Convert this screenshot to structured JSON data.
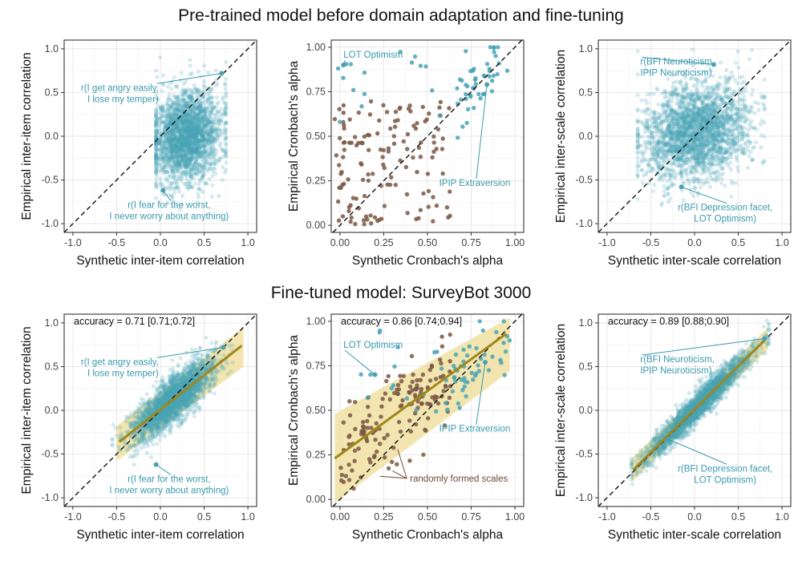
{
  "colors": {
    "teal": "#4aa3b5",
    "brown": "#7a5744",
    "band": "#eddc94",
    "fit": "#a0871a",
    "grid": "#e6e6e6",
    "frame": "#222222",
    "annotation_teal": "#3a9aae"
  },
  "rows": [
    {
      "title": "Pre-trained model before domain adaptation and fine-tuning"
    },
    {
      "title": "Fine-tuned model: SurveyBot 3000"
    }
  ],
  "chart_data": [
    {
      "id": "pre-item",
      "row": 0,
      "col": 0,
      "type": "scatter",
      "xlabel": "Synthetic inter-item correlation",
      "ylabel": "Empirical inter-item correlation",
      "xlim": [
        -1.1,
        1.1
      ],
      "ylim": [
        -1.1,
        1.1
      ],
      "xticks": [
        -1.0,
        -0.5,
        0.0,
        0.5,
        1.0
      ],
      "xtick_labels": [
        "-1.0",
        "-0.5",
        "0.0",
        "0.5",
        "1.0"
      ],
      "yticks": [
        -1.0,
        -0.5,
        0.0,
        0.5,
        1.0
      ],
      "ytick_labels": [
        "-1.0",
        "-0.5",
        "0.0",
        "0.5",
        "1.0"
      ],
      "identity_line": true,
      "cloud": {
        "n": 2600,
        "seed": 11,
        "mx": 0.3,
        "my": 0.0,
        "sx": 0.19,
        "sy": 0.26,
        "rho": 0.15,
        "x_range": [
          -0.05,
          0.75
        ]
      },
      "highlights": [
        {
          "x": 0.7,
          "y": 0.72
        },
        {
          "x": 0.03,
          "y": -0.62
        }
      ],
      "annotations": [
        {
          "lines": [
            "r(I get angry easily,",
            "I lose my temper)"
          ],
          "x": -0.02,
          "y": 0.52,
          "anchor": "end",
          "to": [
            0.7,
            0.72
          ]
        },
        {
          "lines": [
            "r(I fear for the worst,",
            "I never worry about anything)"
          ],
          "x": 0.1,
          "y": -0.82,
          "anchor": "middle",
          "to": [
            0.03,
            -0.62
          ]
        }
      ]
    },
    {
      "id": "pre-alpha",
      "row": 0,
      "col": 1,
      "type": "scatter",
      "xlabel": "Synthetic Cronbach's alpha",
      "ylabel": "Empirical Cronbach's alpha",
      "xlim": [
        -0.05,
        1.05
      ],
      "ylim": [
        -0.04,
        1.04
      ],
      "xticks": [
        0,
        0.25,
        0.5,
        0.75,
        1.0
      ],
      "xtick_labels": [
        "0.00",
        "0.25",
        "0.50",
        "0.75",
        "1.00"
      ],
      "yticks": [
        0,
        0.25,
        0.5,
        0.75,
        1.0
      ],
      "ytick_labels": [
        "0.00",
        "0.25",
        "0.50",
        "0.75",
        "1.00"
      ],
      "identity_line": true,
      "points_teal": [
        {
          "n": 48,
          "seed": 21,
          "x_range": [
            0.65,
            0.97
          ],
          "y_around_x": 0.0,
          "y_jitter": 0.09
        },
        {
          "n": 16,
          "seed": 22,
          "x_range": [
            -0.03,
            0.6
          ],
          "y_range": [
            0.55,
            0.98
          ]
        }
      ],
      "points_brown": {
        "n": 140,
        "seed": 23,
        "x_range": [
          -0.03,
          0.63
        ],
        "y_range": [
          0.0,
          0.7
        ]
      },
      "highlights": [
        {
          "x": 0.02,
          "y": 0.9
        },
        {
          "x": 0.84,
          "y": 0.79
        }
      ],
      "annotations": [
        {
          "lines": [
            "LOT Optimism"
          ],
          "x": 0.02,
          "y": 0.94,
          "anchor": "start",
          "to": [
            0.02,
            0.9
          ]
        },
        {
          "lines": [
            "IPIP Extraversion"
          ],
          "x": 0.77,
          "y": 0.22,
          "anchor": "middle",
          "to": [
            0.84,
            0.79
          ]
        }
      ]
    },
    {
      "id": "pre-scale",
      "row": 0,
      "col": 2,
      "type": "scatter",
      "xlabel": "Synthetic inter-scale correlation",
      "ylabel": "Empirical inter-scale correlation",
      "xlim": [
        -1.1,
        1.1
      ],
      "ylim": [
        -1.1,
        1.1
      ],
      "xticks": [
        -1.0,
        -0.5,
        0.0,
        0.5,
        1.0
      ],
      "xtick_labels": [
        "-1.0",
        "-0.5",
        "0.0",
        "0.5",
        "1.0"
      ],
      "yticks": [
        -1.0,
        -0.5,
        0.0,
        0.5,
        1.0
      ],
      "ytick_labels": [
        "-1.0",
        "-0.5",
        "0.0",
        "0.5",
        "1.0"
      ],
      "identity_line": true,
      "cloud": {
        "n": 2600,
        "seed": 31,
        "mx": 0.02,
        "my": 0.05,
        "sx": 0.3,
        "sy": 0.27,
        "rho": 0.2,
        "x_range": [
          -0.65,
          0.8
        ]
      },
      "highlights": [
        {
          "x": 0.22,
          "y": 0.82
        },
        {
          "x": -0.15,
          "y": -0.58
        }
      ],
      "annotations": [
        {
          "lines": [
            "r(BFI Neuroticism,",
            "IPIP Neuroticism)"
          ],
          "x": -0.62,
          "y": 0.82,
          "anchor": "start",
          "to": [
            0.22,
            0.82
          ]
        },
        {
          "lines": [
            "r(BFI Depression facet,",
            "LOT Optimism)"
          ],
          "x": 0.35,
          "y": -0.85,
          "anchor": "middle",
          "to": [
            -0.15,
            -0.58
          ]
        }
      ]
    },
    {
      "id": "ft-item",
      "row": 1,
      "col": 0,
      "type": "scatter",
      "xlabel": "Synthetic inter-item correlation",
      "ylabel": "Empirical inter-item correlation",
      "xlim": [
        -1.1,
        1.1
      ],
      "ylim": [
        -1.1,
        1.1
      ],
      "xticks": [
        -1.0,
        -0.5,
        0.0,
        0.5,
        1.0
      ],
      "xtick_labels": [
        "-1.0",
        "-0.5",
        "0.0",
        "0.5",
        "1.0"
      ],
      "yticks": [
        -1.0,
        -0.5,
        0.0,
        0.5,
        1.0
      ],
      "ytick_labels": [
        "-1.0",
        "-0.5",
        "0.0",
        "0.5",
        "1.0"
      ],
      "identity_line": true,
      "accuracy": "accuracy = 0.71 [0.71;0.72]",
      "fit": {
        "x": [
          -0.47,
          0.93
        ],
        "y": [
          -0.36,
          0.74
        ]
      },
      "band": {
        "x": [
          -0.5,
          0.95
        ],
        "lower": [
          -0.58,
          0.5
        ],
        "upper": [
          -0.18,
          0.95
        ]
      },
      "cloud": {
        "n": 2600,
        "seed": 41,
        "fit_slope": 0.79,
        "fit_intercept": 0.01,
        "x_mean": 0.15,
        "x_sd": 0.23,
        "resid_sd": 0.13,
        "x_range": [
          -0.55,
          0.95
        ]
      },
      "highlights": [
        {
          "x": 0.72,
          "y": 0.72
        },
        {
          "x": -0.05,
          "y": -0.62
        }
      ],
      "annotations": [
        {
          "lines": [
            "r(I get angry easily,",
            "I lose my temper)"
          ],
          "x": -0.02,
          "y": 0.52,
          "anchor": "end",
          "to": [
            0.72,
            0.72
          ]
        },
        {
          "lines": [
            "r(I fear for the worst,",
            "I never worry about anything)"
          ],
          "x": 0.1,
          "y": -0.82,
          "anchor": "middle",
          "to": [
            -0.05,
            -0.62
          ]
        }
      ]
    },
    {
      "id": "ft-alpha",
      "row": 1,
      "col": 1,
      "type": "scatter",
      "xlabel": "Synthetic Cronbach's alpha",
      "ylabel": "Empirical Cronbach's alpha",
      "xlim": [
        -0.05,
        1.05
      ],
      "ylim": [
        -0.04,
        1.04
      ],
      "xticks": [
        0,
        0.25,
        0.5,
        0.75,
        1.0
      ],
      "xtick_labels": [
        "0.00",
        "0.25",
        "0.50",
        "0.75",
        "1.00"
      ],
      "yticks": [
        0,
        0.25,
        0.5,
        0.75,
        1.0
      ],
      "ytick_labels": [
        "0.00",
        "0.25",
        "0.50",
        "0.75",
        "1.00"
      ],
      "identity_line": true,
      "accuracy": "accuracy = 0.86 [0.74;0.94]",
      "fit": {
        "x": [
          -0.03,
          0.95
        ],
        "y": [
          0.23,
          0.93
        ]
      },
      "band": {
        "x": [
          -0.03,
          0.97
        ],
        "lower": [
          -0.02,
          0.72
        ],
        "upper": [
          0.48,
          1.02
        ]
      },
      "points_teal": [
        {
          "n": 48,
          "seed": 51,
          "x_range": [
            0.6,
            0.97
          ],
          "y_around_x": -0.02,
          "y_jitter": 0.09
        },
        {
          "n": 16,
          "seed": 52,
          "x_range": [
            0.1,
            0.6
          ],
          "y_range": [
            0.45,
            0.95
          ]
        }
      ],
      "points_brown": {
        "n": 150,
        "seed": 53,
        "x_range": [
          0.0,
          0.63
        ],
        "y_from_fit": true,
        "y_jitter": 0.12
      },
      "highlights": [
        {
          "x": 0.2,
          "y": 0.7
        },
        {
          "x": 0.83,
          "y": 0.77
        }
      ],
      "annotations": [
        {
          "lines": [
            "LOT Optimism"
          ],
          "x": 0.02,
          "y": 0.85,
          "anchor": "start",
          "to": [
            0.2,
            0.7
          ]
        },
        {
          "lines": [
            "IPIP Extraversion"
          ],
          "x": 0.77,
          "y": 0.38,
          "anchor": "middle",
          "to": [
            0.83,
            0.77
          ]
        }
      ],
      "brown_annotation": {
        "text": "randomly formed scales",
        "x": 0.4,
        "y": 0.1,
        "to": [
          [
            0.33,
            0.28
          ],
          [
            0.3,
            0.16
          ],
          [
            0.23,
            0.13
          ]
        ]
      }
    },
    {
      "id": "ft-scale",
      "row": 1,
      "col": 2,
      "type": "scatter",
      "xlabel": "Synthetic inter-scale correlation",
      "ylabel": "Empirical inter-scale correlation",
      "xlim": [
        -1.1,
        1.1
      ],
      "ylim": [
        -1.1,
        1.1
      ],
      "xticks": [
        -1.0,
        -0.5,
        0.0,
        0.5,
        1.0
      ],
      "xtick_labels": [
        "-1.0",
        "-0.5",
        "0.0",
        "0.5",
        "1.0"
      ],
      "yticks": [
        -1.0,
        -0.5,
        0.0,
        0.5,
        1.0
      ],
      "ytick_labels": [
        "-1.0",
        "-0.5",
        "0.0",
        "0.5",
        "1.0"
      ],
      "identity_line": true,
      "accuracy": "accuracy = 0.89 [0.88;0.90]",
      "fit": {
        "x": [
          -0.7,
          0.82
        ],
        "y": [
          -0.68,
          0.82
        ]
      },
      "band": {
        "x": [
          -0.72,
          0.84
        ],
        "lower": [
          -0.82,
          0.7
        ],
        "upper": [
          -0.55,
          0.95
        ]
      },
      "cloud": {
        "n": 2600,
        "seed": 61,
        "fit_slope": 0.99,
        "fit_intercept": 0.01,
        "x_mean": 0.05,
        "x_sd": 0.3,
        "resid_sd": 0.08,
        "x_range": [
          -0.72,
          0.85
        ]
      },
      "highlights": [
        {
          "x": 0.8,
          "y": 0.82
        },
        {
          "x": -0.3,
          "y": -0.33
        }
      ],
      "annotations": [
        {
          "lines": [
            "r(BFI Neuroticism,",
            "IPIP Neuroticism)"
          ],
          "x": -0.62,
          "y": 0.55,
          "anchor": "start",
          "to": [
            0.8,
            0.82
          ]
        },
        {
          "lines": [
            "r(BFI Depression facet,",
            "LOT Optimism)"
          ],
          "x": 0.35,
          "y": -0.7,
          "anchor": "middle",
          "to": [
            -0.3,
            -0.33
          ]
        }
      ]
    }
  ]
}
